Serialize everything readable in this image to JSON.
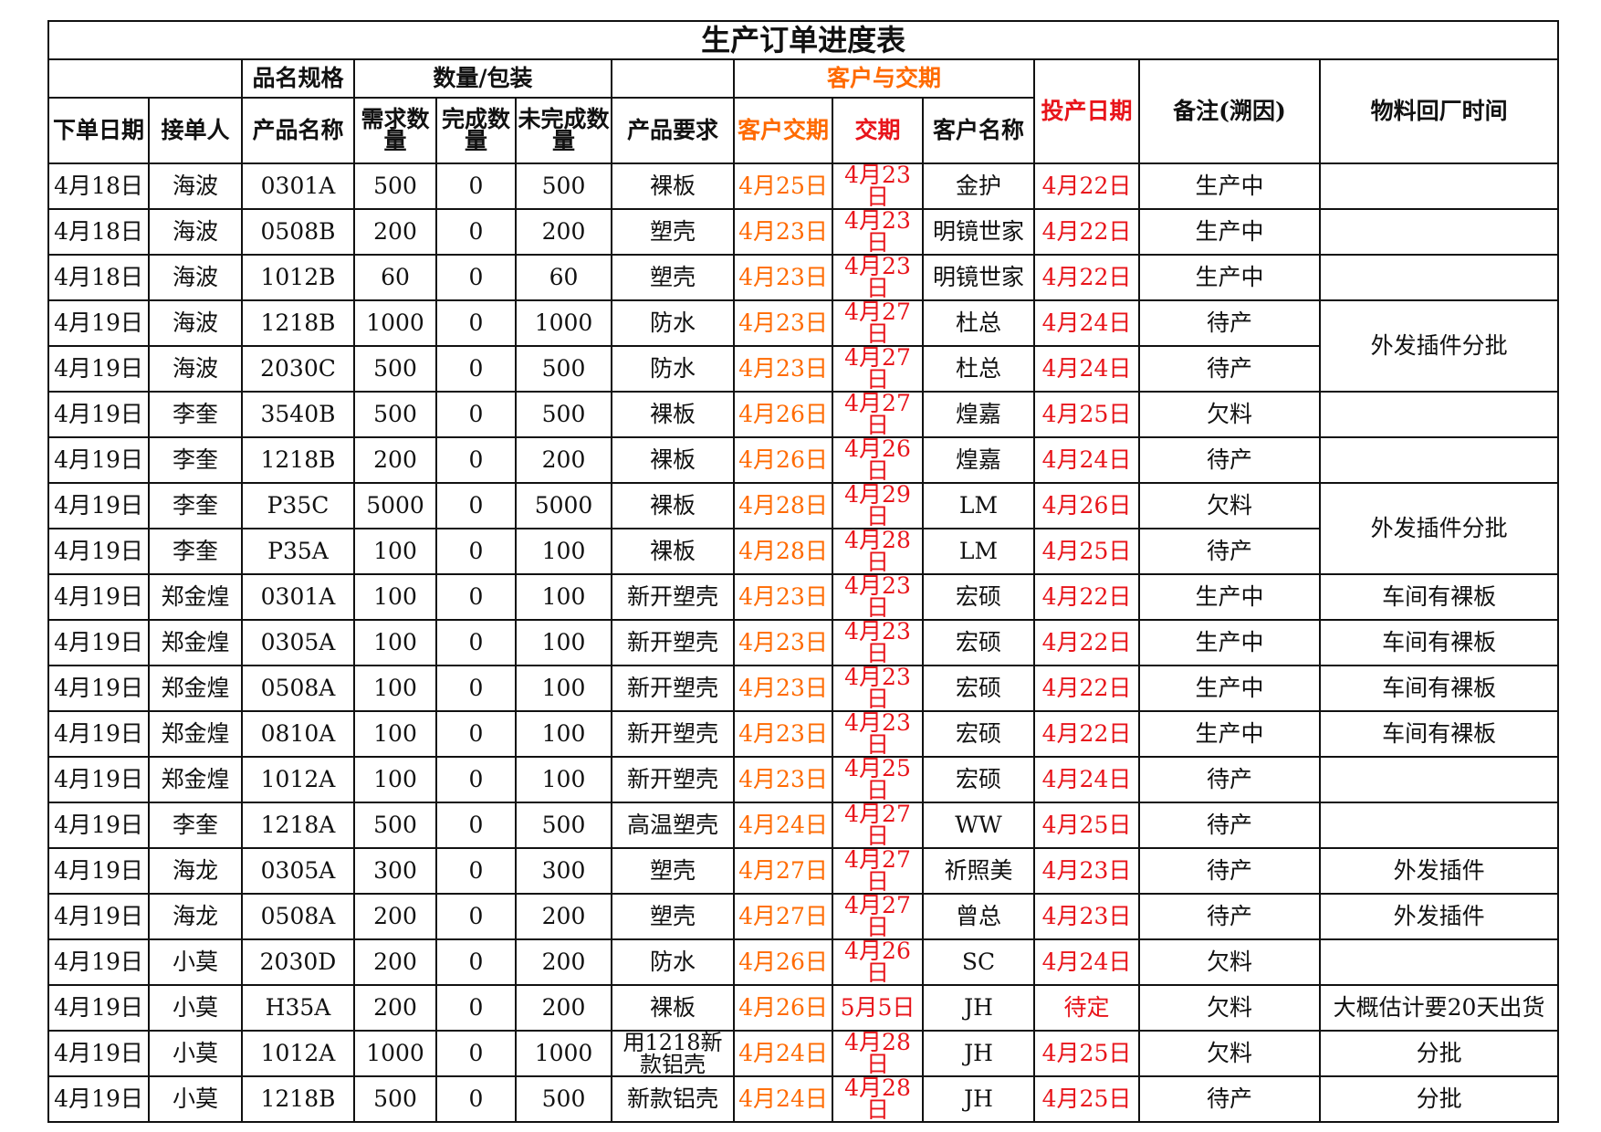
{
  "title": "生产订单进度表",
  "header_groups": {
    "spec": "品名规格",
    "qty": "数量/包装",
    "customer_delivery": "客户与交期",
    "start_date": "投产日期",
    "note": "备注(溯因)",
    "material_return": "物料回厂时间"
  },
  "columns": {
    "order_date": "下单日期",
    "receiver": "接单人",
    "product_name": "产品名称",
    "required_qty": "需求数量",
    "done_qty": "完成数量",
    "undone_qty": "未完成数量",
    "requirement": "产品要求",
    "customer_due": "客户交期",
    "due": "交期",
    "customer_name": "客户名称"
  },
  "rows": [
    {
      "date": "4月18日",
      "receiver": "海波",
      "product": "0301A",
      "req": "500",
      "done": "0",
      "undone": "500",
      "requirement": "裸板",
      "cust_due": "4月25日",
      "due": "4月23日",
      "customer": "金护",
      "start": "4月22日",
      "note": "生产中"
    },
    {
      "date": "4月18日",
      "receiver": "海波",
      "product": "0508B",
      "req": "200",
      "done": "0",
      "undone": "200",
      "requirement": "塑壳",
      "cust_due": "4月23日",
      "due": "4月23日",
      "customer": "明镜世家",
      "start": "4月22日",
      "note": "生产中"
    },
    {
      "date": "4月18日",
      "receiver": "海波",
      "product": "1012B",
      "req": "60",
      "done": "0",
      "undone": "60",
      "requirement": "塑壳",
      "cust_due": "4月23日",
      "due": "4月23日",
      "customer": "明镜世家",
      "start": "4月22日",
      "note": "生产中"
    },
    {
      "date": "4月19日",
      "receiver": "海波",
      "product": "1218B",
      "req": "1000",
      "done": "0",
      "undone": "1000",
      "requirement": "防水",
      "cust_due": "4月23日",
      "due": "4月27日",
      "customer": "杜总",
      "start": "4月24日",
      "note": "待产"
    },
    {
      "date": "4月19日",
      "receiver": "海波",
      "product": "2030C",
      "req": "500",
      "done": "0",
      "undone": "500",
      "requirement": "防水",
      "cust_due": "4月23日",
      "due": "4月27日",
      "customer": "杜总",
      "start": "4月24日",
      "note": "待产"
    },
    {
      "date": "4月19日",
      "receiver": "李奎",
      "product": "3540B",
      "req": "500",
      "done": "0",
      "undone": "500",
      "requirement": "裸板",
      "cust_due": "4月26日",
      "due": "4月27日",
      "customer": "煌嘉",
      "start": "4月25日",
      "note": "欠料"
    },
    {
      "date": "4月19日",
      "receiver": "李奎",
      "product": "1218B",
      "req": "200",
      "done": "0",
      "undone": "200",
      "requirement": "裸板",
      "cust_due": "4月26日",
      "due": "4月26日",
      "customer": "煌嘉",
      "start": "4月24日",
      "note": "待产"
    },
    {
      "date": "4月19日",
      "receiver": "李奎",
      "product": "P35C",
      "req": "5000",
      "done": "0",
      "undone": "5000",
      "requirement": "裸板",
      "cust_due": "4月28日",
      "due": "4月29日",
      "customer": "LM",
      "start": "4月26日",
      "note": "欠料"
    },
    {
      "date": "4月19日",
      "receiver": "李奎",
      "product": "P35A",
      "req": "100",
      "done": "0",
      "undone": "100",
      "requirement": "裸板",
      "cust_due": "4月28日",
      "due": "4月28日",
      "customer": "LM",
      "start": "4月25日",
      "note": "待产"
    },
    {
      "date": "4月19日",
      "receiver": "郑金煌",
      "product": "0301A",
      "req": "100",
      "done": "0",
      "undone": "100",
      "requirement": "新开塑壳",
      "cust_due": "4月23日",
      "due": "4月23日",
      "customer": "宏硕",
      "start": "4月22日",
      "note": "生产中"
    },
    {
      "date": "4月19日",
      "receiver": "郑金煌",
      "product": "0305A",
      "req": "100",
      "done": "0",
      "undone": "100",
      "requirement": "新开塑壳",
      "cust_due": "4月23日",
      "due": "4月23日",
      "customer": "宏硕",
      "start": "4月22日",
      "note": "生产中"
    },
    {
      "date": "4月19日",
      "receiver": "郑金煌",
      "product": "0508A",
      "req": "100",
      "done": "0",
      "undone": "100",
      "requirement": "新开塑壳",
      "cust_due": "4月23日",
      "due": "4月23日",
      "customer": "宏硕",
      "start": "4月22日",
      "note": "生产中"
    },
    {
      "date": "4月19日",
      "receiver": "郑金煌",
      "product": "0810A",
      "req": "100",
      "done": "0",
      "undone": "100",
      "requirement": "新开塑壳",
      "cust_due": "4月23日",
      "due": "4月23日",
      "customer": "宏硕",
      "start": "4月22日",
      "note": "生产中"
    },
    {
      "date": "4月19日",
      "receiver": "郑金煌",
      "product": "1012A",
      "req": "100",
      "done": "0",
      "undone": "100",
      "requirement": "新开塑壳",
      "cust_due": "4月23日",
      "due": "4月25日",
      "customer": "宏硕",
      "start": "4月24日",
      "note": "待产"
    },
    {
      "date": "4月19日",
      "receiver": "李奎",
      "product": "1218A",
      "req": "500",
      "done": "0",
      "undone": "500",
      "requirement": "高温塑壳",
      "cust_due": "4月24日",
      "due": "4月27日",
      "customer": "WW",
      "start": "4月25日",
      "note": "待产"
    },
    {
      "date": "4月19日",
      "receiver": "海龙",
      "product": "0305A",
      "req": "300",
      "done": "0",
      "undone": "300",
      "requirement": "塑壳",
      "cust_due": "4月27日",
      "due": "4月27日",
      "customer": "祈照美",
      "start": "4月23日",
      "note": "待产"
    },
    {
      "date": "4月19日",
      "receiver": "海龙",
      "product": "0508A",
      "req": "200",
      "done": "0",
      "undone": "200",
      "requirement": "塑壳",
      "cust_due": "4月27日",
      "due": "4月27日",
      "customer": "曾总",
      "start": "4月23日",
      "note": "待产"
    },
    {
      "date": "4月19日",
      "receiver": "小莫",
      "product": "2030D",
      "req": "200",
      "done": "0",
      "undone": "200",
      "requirement": "防水",
      "cust_due": "4月26日",
      "due": "4月26日",
      "customer": "SC",
      "start": "4月24日",
      "note": "欠料"
    },
    {
      "date": "4月19日",
      "receiver": "小莫",
      "product": "H35A",
      "req": "200",
      "done": "0",
      "undone": "200",
      "requirement": "裸板",
      "cust_due": "4月26日",
      "due": "5月5日",
      "customer": "JH",
      "start": "待定",
      "note": "欠料"
    },
    {
      "date": "4月19日",
      "receiver": "小莫",
      "product": "1012A",
      "req": "1000",
      "done": "0",
      "undone": "1000",
      "requirement": "用1218新款铝壳",
      "cust_due": "4月24日",
      "due": "4月28日",
      "customer": "JH",
      "start": "4月25日",
      "note": "欠料"
    },
    {
      "date": "4月19日",
      "receiver": "小莫",
      "product": "1218B",
      "req": "500",
      "done": "0",
      "undone": "500",
      "requirement": "新款铝壳",
      "cust_due": "4月24日",
      "due": "4月28日",
      "customer": "JH",
      "start": "4月25日",
      "note": "待产"
    }
  ],
  "material_cells": [
    {
      "row": 0,
      "span": 1,
      "text": ""
    },
    {
      "row": 1,
      "span": 1,
      "text": ""
    },
    {
      "row": 2,
      "span": 1,
      "text": ""
    },
    {
      "row": 3,
      "span": 2,
      "text": "外发插件分批"
    },
    {
      "row": 5,
      "span": 1,
      "text": ""
    },
    {
      "row": 6,
      "span": 1,
      "text": ""
    },
    {
      "row": 7,
      "span": 2,
      "text": "外发插件分批"
    },
    {
      "row": 9,
      "span": 1,
      "text": "车间有裸板"
    },
    {
      "row": 10,
      "span": 1,
      "text": "车间有裸板"
    },
    {
      "row": 11,
      "span": 1,
      "text": "车间有裸板"
    },
    {
      "row": 12,
      "span": 1,
      "text": "车间有裸板"
    },
    {
      "row": 13,
      "span": 1,
      "text": ""
    },
    {
      "row": 14,
      "span": 1,
      "text": ""
    },
    {
      "row": 15,
      "span": 1,
      "text": "外发插件"
    },
    {
      "row": 16,
      "span": 1,
      "text": "外发插件"
    },
    {
      "row": 17,
      "span": 1,
      "text": ""
    },
    {
      "row": 18,
      "span": 1,
      "text": "大概估计要20天出货"
    },
    {
      "row": 19,
      "span": 1,
      "text": "分批"
    },
    {
      "row": 20,
      "span": 1,
      "text": "分批"
    }
  ],
  "colors": {
    "orange": "#ff6a00",
    "red": "#e8141a",
    "border": "#111111"
  }
}
